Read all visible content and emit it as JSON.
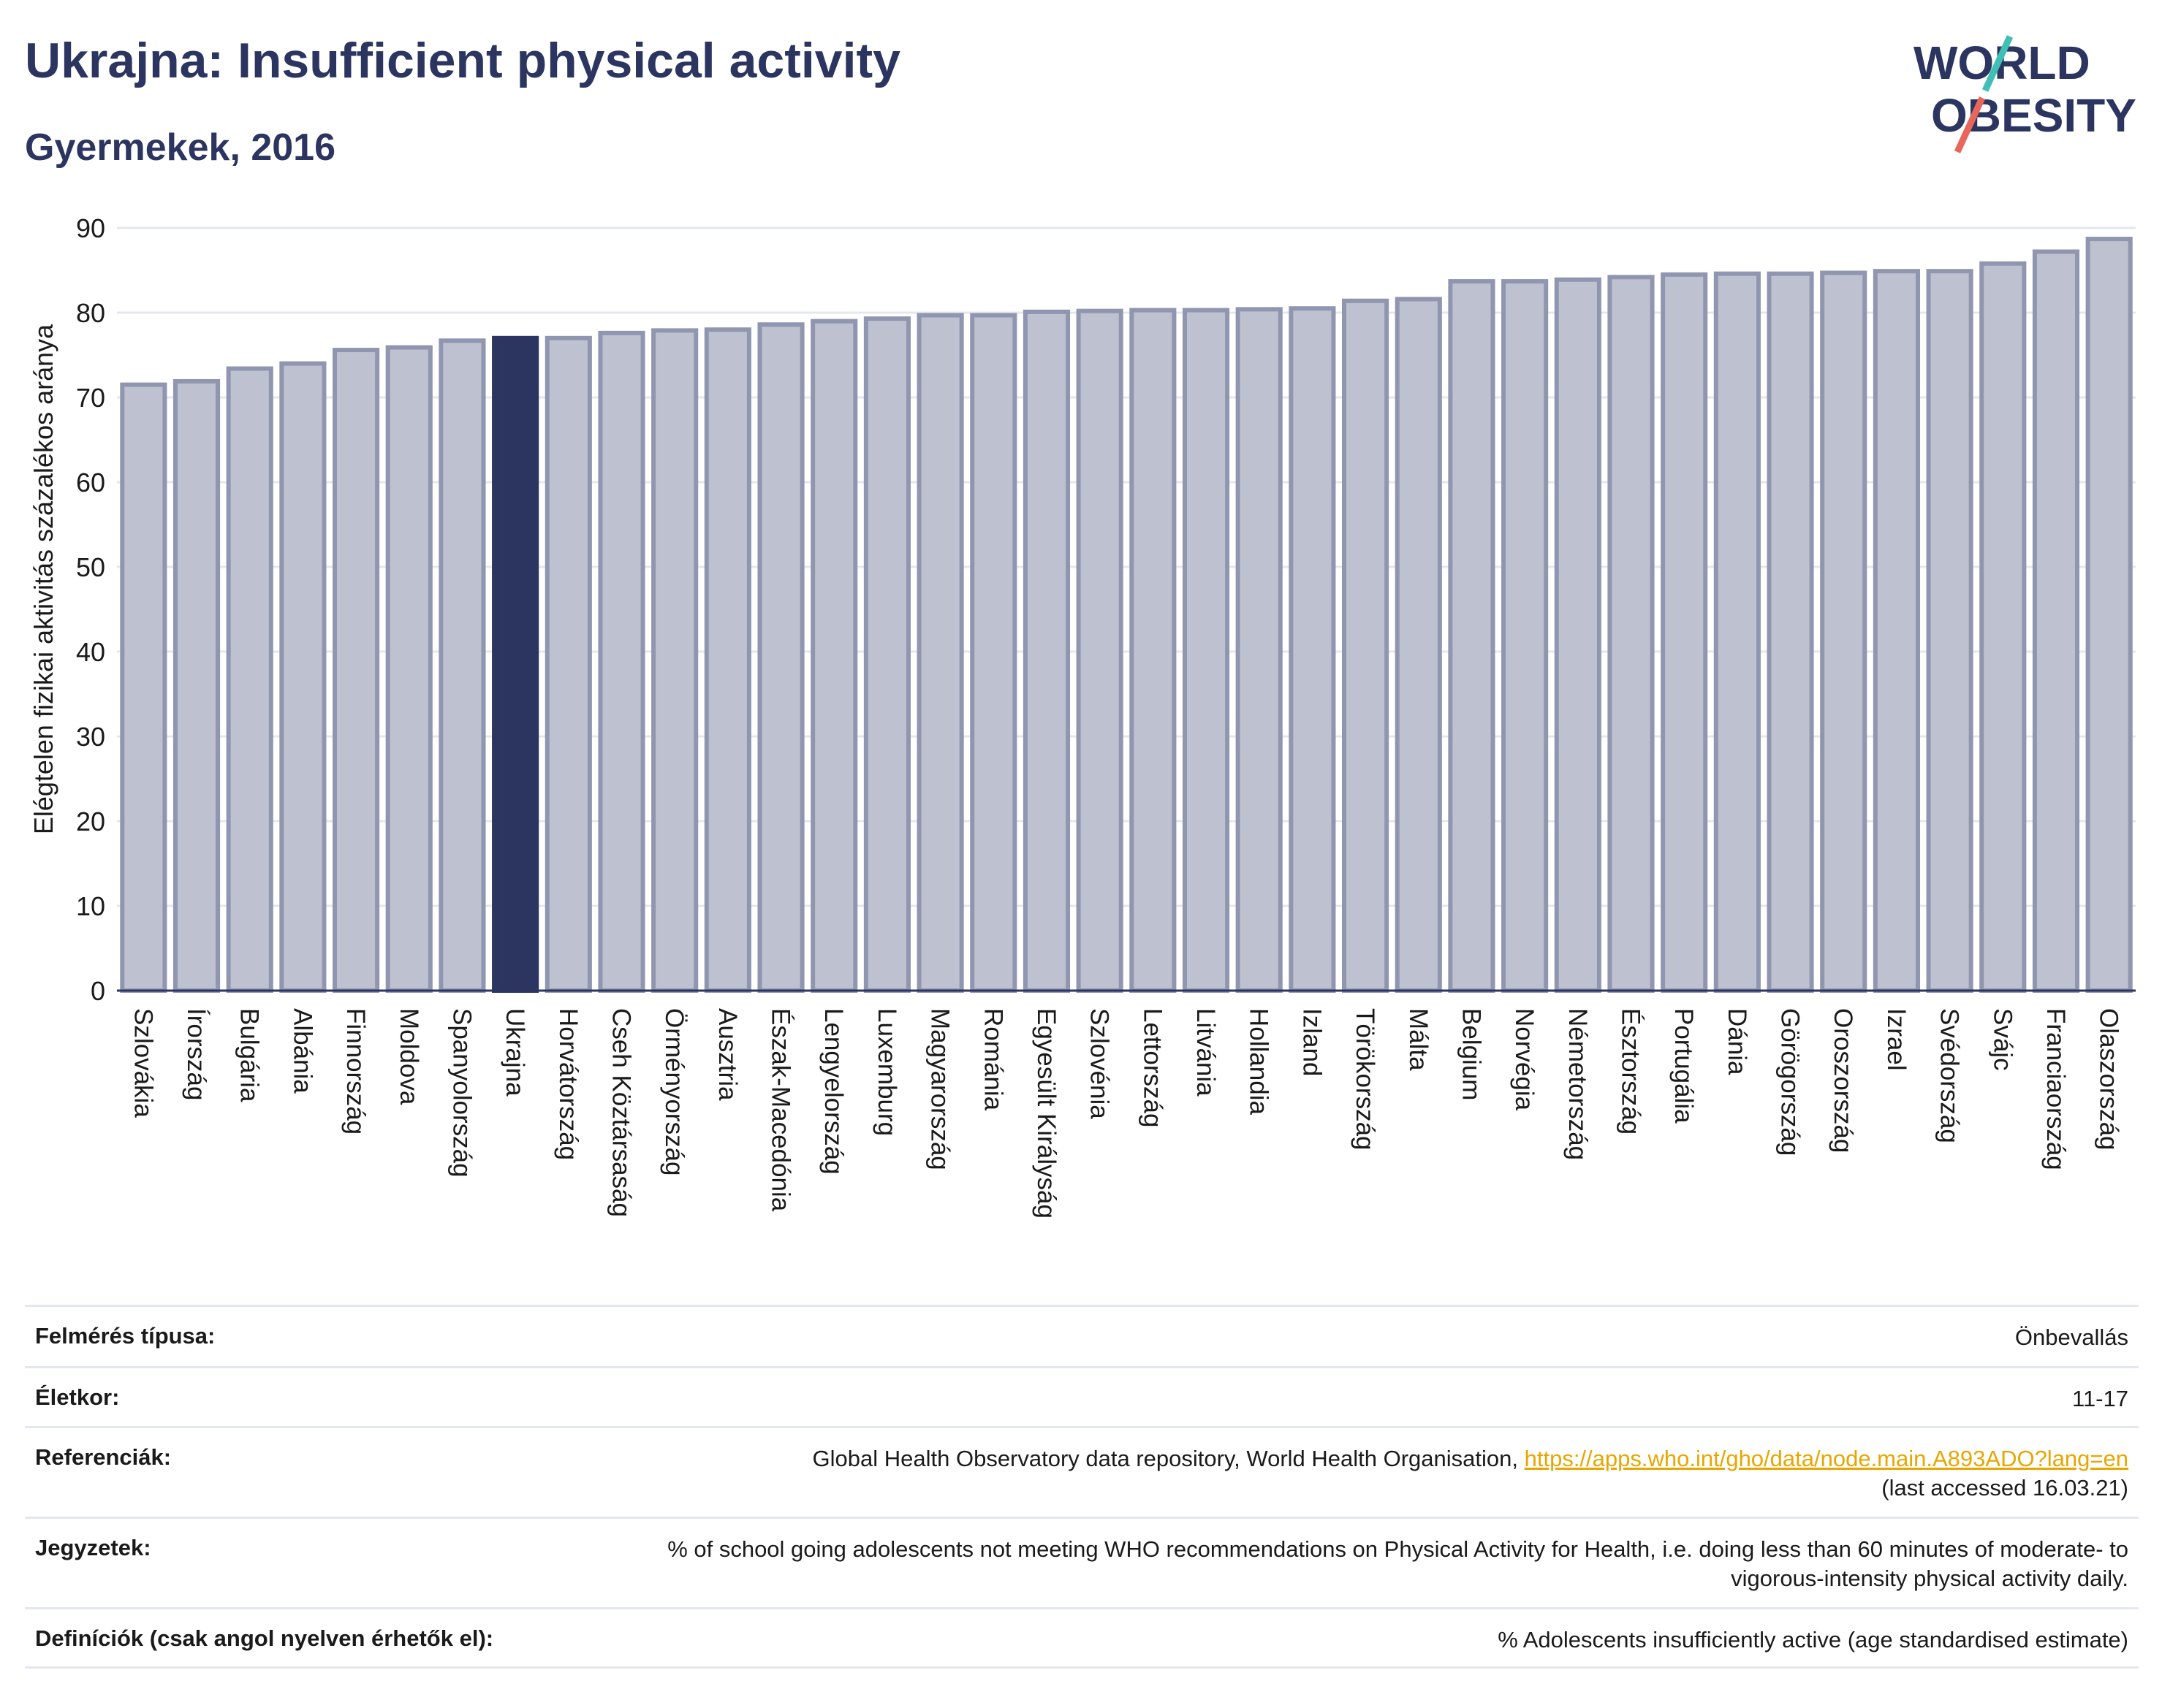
{
  "header": {
    "title": "Ukrajna: Insufficient physical activity",
    "subtitle": "Gyermekek, 2016"
  },
  "logo": {
    "line1": "WORLD",
    "line2": "OBESITY",
    "text_color": "#2b3560",
    "slash_colors": [
      "#3fbfb5",
      "#e8665a"
    ]
  },
  "chart_data": {
    "type": "bar",
    "ylabel": "Elégtelen fizikai aktivitás százalékos aránya",
    "ylim": [
      0,
      90
    ],
    "yticks": [
      0,
      10,
      20,
      30,
      40,
      50,
      60,
      70,
      80,
      90
    ],
    "grid": true,
    "categories": [
      "Szlovákia",
      "Írország",
      "Bulgária",
      "Albánia",
      "Finnország",
      "Moldova",
      "Spanyolország",
      "Ukrajna",
      "Horvátország",
      "Cseh Köztársaság",
      "Örményország",
      "Ausztria",
      "Észak-Macedónia",
      "Lengyelország",
      "Luxemburg",
      "Magyarország",
      "Románia",
      "Egyesült Királyság",
      "Szlovénia",
      "Lettország",
      "Litvánia",
      "Hollandia",
      "Izland",
      "Törökország",
      "Málta",
      "Belgium",
      "Norvégia",
      "Németország",
      "Észtország",
      "Portugália",
      "Dánia",
      "Görögország",
      "Oroszország",
      "Izrael",
      "Svédország",
      "Svájc",
      "Franciaország",
      "Olaszország"
    ],
    "values": [
      71.5,
      71.9,
      73.4,
      74.0,
      75.6,
      75.9,
      76.7,
      77.0,
      77.0,
      77.6,
      77.9,
      78.0,
      78.6,
      79.0,
      79.3,
      79.7,
      79.7,
      80.1,
      80.2,
      80.3,
      80.3,
      80.4,
      80.5,
      81.4,
      81.6,
      83.7,
      83.7,
      83.9,
      84.2,
      84.5,
      84.6,
      84.6,
      84.7,
      84.9,
      84.9,
      85.8,
      87.2,
      88.7
    ],
    "highlight": "Ukrajna",
    "colors": {
      "bar": "#bec1cf",
      "bar_edge": "#9196b0",
      "highlight": "#2b3560",
      "grid": "#e4e7ef",
      "axis": "#2b3560"
    }
  },
  "info": [
    {
      "label": "Felmérés típusa:",
      "value": "Önbevallás"
    },
    {
      "label": "Életkor:",
      "value": "11-17"
    },
    {
      "label": "Referenciák:",
      "value": "Global Health Observatory data repository, World Health Organisation, ",
      "link": "https://apps.who.int/gho/data/node.main.A893ADO?lang=en",
      "value2": "(last accessed 16.03.21)"
    },
    {
      "label": "Jegyzetek:",
      "value": "% of school going adolescents not meeting WHO recommendations on Physical Activity for Health, i.e. doing less than 60 minutes of moderate- to vigorous-intensity physical activity daily."
    },
    {
      "label": "Definíciók (csak angol nyelven érhetők el):",
      "value": "% Adolescents insufficiently active (age standardised estimate)"
    }
  ]
}
